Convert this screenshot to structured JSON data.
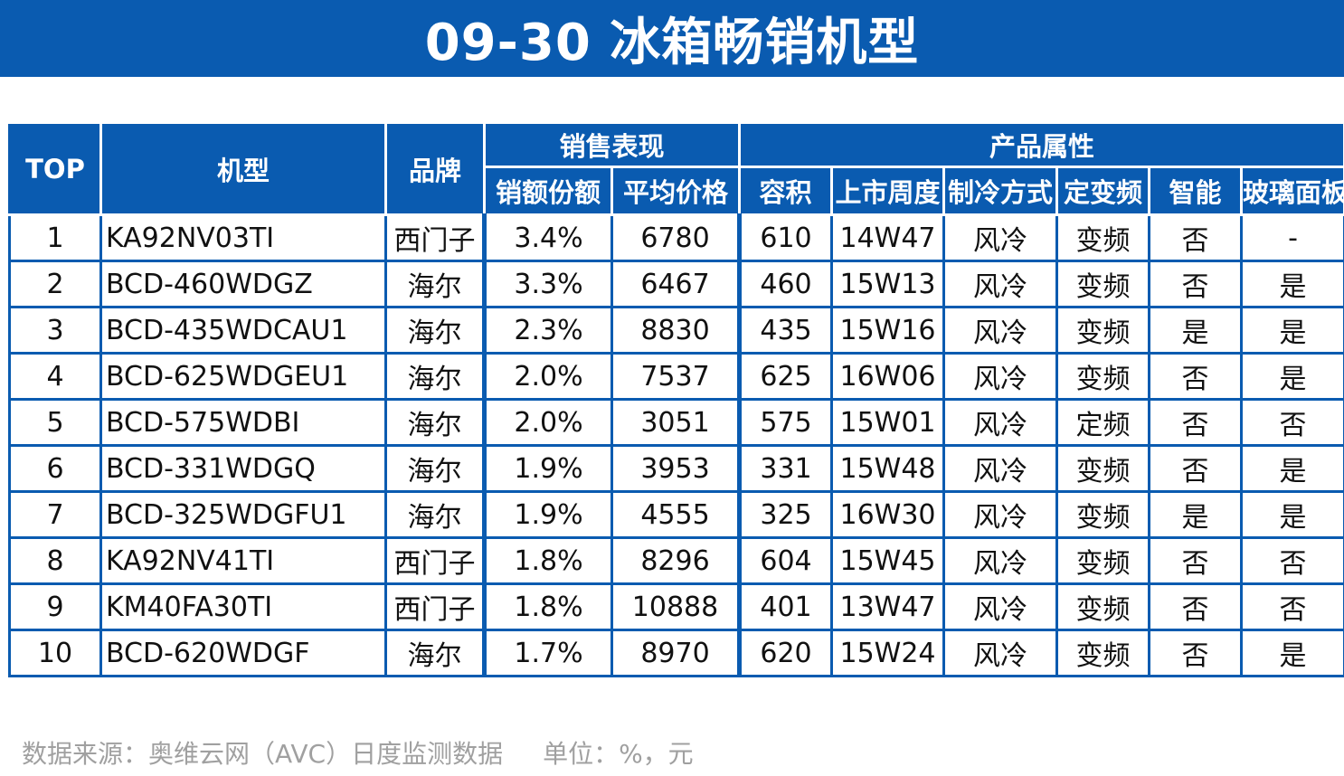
{
  "title": "09-30 冰箱畅销机型",
  "header": {
    "top": "TOP",
    "model": "机型",
    "brand": "品牌",
    "group_sales": "销售表现",
    "group_attr": "产品属性",
    "share": "销额份额",
    "avg_price": "平均价格",
    "capacity": "容积",
    "launch_week": "上市周度",
    "cooling": "制冷方式",
    "inverter": "定变频",
    "smart": "智能",
    "glass_panel": "玻璃面板"
  },
  "rows": [
    {
      "rank": "1",
      "model": "KA92NV03TI",
      "brand": "西门子",
      "share": "3.4%",
      "price": "6780",
      "capacity": "610",
      "week": "14W47",
      "cooling": "风冷",
      "inverter": "变频",
      "smart": "否",
      "glass": "-"
    },
    {
      "rank": "2",
      "model": "BCD-460WDGZ",
      "brand": "海尔",
      "share": "3.3%",
      "price": "6467",
      "capacity": "460",
      "week": "15W13",
      "cooling": "风冷",
      "inverter": "变频",
      "smart": "否",
      "glass": "是"
    },
    {
      "rank": "3",
      "model": "BCD-435WDCAU1",
      "brand": "海尔",
      "share": "2.3%",
      "price": "8830",
      "capacity": "435",
      "week": "15W16",
      "cooling": "风冷",
      "inverter": "变频",
      "smart": "是",
      "glass": "是"
    },
    {
      "rank": "4",
      "model": "BCD-625WDGEU1",
      "brand": "海尔",
      "share": "2.0%",
      "price": "7537",
      "capacity": "625",
      "week": "16W06",
      "cooling": "风冷",
      "inverter": "变频",
      "smart": "否",
      "glass": "是"
    },
    {
      "rank": "5",
      "model": "BCD-575WDBI",
      "brand": "海尔",
      "share": "2.0%",
      "price": "3051",
      "capacity": "575",
      "week": "15W01",
      "cooling": "风冷",
      "inverter": "定频",
      "smart": "否",
      "glass": "否"
    },
    {
      "rank": "6",
      "model": "BCD-331WDGQ",
      "brand": "海尔",
      "share": "1.9%",
      "price": "3953",
      "capacity": "331",
      "week": "15W48",
      "cooling": "风冷",
      "inverter": "变频",
      "smart": "否",
      "glass": "是"
    },
    {
      "rank": "7",
      "model": "BCD-325WDGFU1",
      "brand": "海尔",
      "share": "1.9%",
      "price": "4555",
      "capacity": "325",
      "week": "16W30",
      "cooling": "风冷",
      "inverter": "变频",
      "smart": "是",
      "glass": "是"
    },
    {
      "rank": "8",
      "model": "KA92NV41TI",
      "brand": "西门子",
      "share": "1.8%",
      "price": "8296",
      "capacity": "604",
      "week": "15W45",
      "cooling": "风冷",
      "inverter": "变频",
      "smart": "否",
      "glass": "否"
    },
    {
      "rank": "9",
      "model": "KM40FA30TI",
      "brand": "西门子",
      "share": "1.8%",
      "price": "10888",
      "capacity": "401",
      "week": "13W47",
      "cooling": "风冷",
      "inverter": "变频",
      "smart": "否",
      "glass": "否"
    },
    {
      "rank": "10",
      "model": "BCD-620WDGF",
      "brand": "海尔",
      "share": "1.7%",
      "price": "8970",
      "capacity": "620",
      "week": "15W24",
      "cooling": "风冷",
      "inverter": "变频",
      "smart": "否",
      "glass": "是"
    }
  ],
  "footer": {
    "source": "数据来源：奥维云网（AVC）日度监测数据",
    "unit": "单位：%，元"
  },
  "colors": {
    "accent": "#0a5bb0",
    "footer_text": "#a0a0a0"
  }
}
